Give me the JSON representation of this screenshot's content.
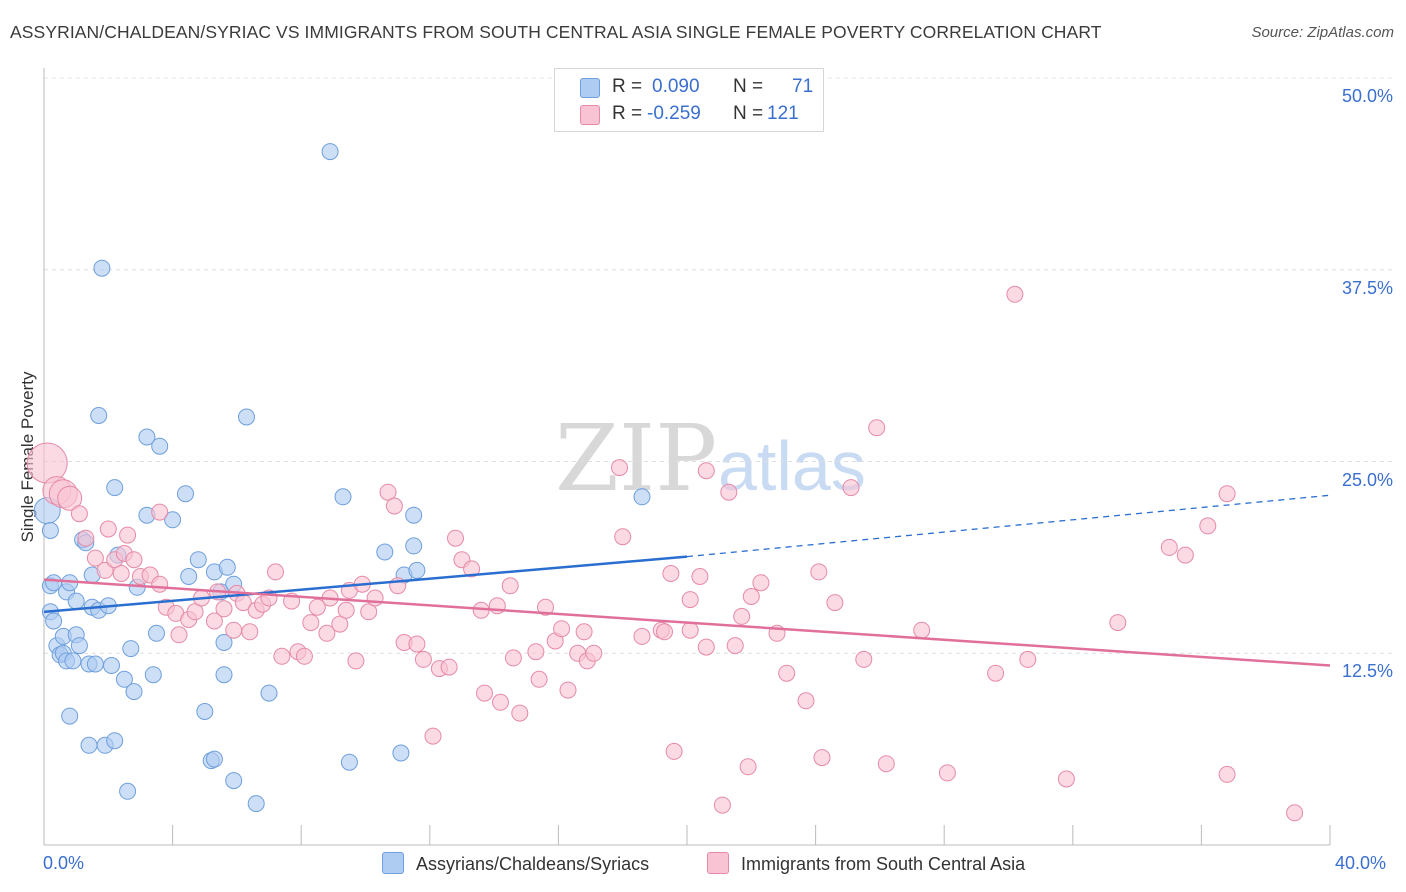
{
  "title": "ASSYRIAN/CHALDEAN/SYRIAC VS IMMIGRANTS FROM SOUTH CENTRAL ASIA SINGLE FEMALE POVERTY CORRELATION CHART",
  "source": "Source: ZipAtlas.com",
  "watermark": {
    "zip": "ZIP",
    "atlas": "atlas"
  },
  "legend": {
    "rows": [
      {
        "r_label": "R =",
        "r_value": "0.090",
        "n_label": "N =",
        "n_value": "71",
        "color": "#aecbf2",
        "border": "#6f9fdc"
      },
      {
        "r_label": "R =",
        "r_value": "-0.259",
        "n_label": "N =",
        "n_value": "121",
        "color": "#f8c4d3",
        "border": "#e68aa8"
      }
    ]
  },
  "bottom_legend": [
    {
      "label": "Assyrians/Chaldeans/Syriacs",
      "color": "#aecbf2",
      "border": "#6f9fdc"
    },
    {
      "label": "Immigrants from South Central Asia",
      "color": "#f8c4d3",
      "border": "#e68aa8"
    }
  ],
  "chart_data": {
    "type": "scatter",
    "title": "ASSYRIAN/CHALDEAN/SYRIAC VS IMMIGRANTS FROM SOUTH CENTRAL ASIA SINGLE FEMALE POVERTY CORRELATION CHART",
    "xlabel": "",
    "ylabel": "Single Female Poverty",
    "xlim": [
      0,
      40
    ],
    "ylim": [
      0,
      50
    ],
    "x_tick_labels": [
      "0.0%",
      "40.0%"
    ],
    "y_ticks": [
      12.5,
      25.0,
      37.5,
      50.0
    ],
    "y_tick_labels": [
      "12.5%",
      "25.0%",
      "37.5%",
      "50.0%"
    ],
    "grid": true,
    "series": [
      {
        "name": "Assyrians/Chaldeans/Syriacs",
        "color": "#aecbf2",
        "edge": "#6f9fdc",
        "trend": {
          "x": [
            0,
            20
          ],
          "y": [
            15.2,
            18.8
          ],
          "dashed_to": [
            40,
            22.8
          ],
          "color": "#2a6fd0"
        },
        "points": [
          [
            0.1,
            21.8
          ],
          [
            0.2,
            20.5
          ],
          [
            0.2,
            16.9
          ],
          [
            0.2,
            15.2
          ],
          [
            0.3,
            17.1
          ],
          [
            0.3,
            14.6
          ],
          [
            0.4,
            13.0
          ],
          [
            0.5,
            12.4
          ],
          [
            0.6,
            12.5
          ],
          [
            0.6,
            13.6
          ],
          [
            0.7,
            12.0
          ],
          [
            0.7,
            16.5
          ],
          [
            0.8,
            17.1
          ],
          [
            0.8,
            8.4
          ],
          [
            0.9,
            12.0
          ],
          [
            1.0,
            15.9
          ],
          [
            1.0,
            13.7
          ],
          [
            1.1,
            13.0
          ],
          [
            1.2,
            19.9
          ],
          [
            1.3,
            19.7
          ],
          [
            1.4,
            6.5
          ],
          [
            1.4,
            11.8
          ],
          [
            1.5,
            17.6
          ],
          [
            1.5,
            15.5
          ],
          [
            1.6,
            11.8
          ],
          [
            1.7,
            15.3
          ],
          [
            1.7,
            28.0
          ],
          [
            1.8,
            37.6
          ],
          [
            1.9,
            6.5
          ],
          [
            2.0,
            15.6
          ],
          [
            2.1,
            11.7
          ],
          [
            2.2,
            6.8
          ],
          [
            2.2,
            23.3
          ],
          [
            2.3,
            18.9
          ],
          [
            2.5,
            10.8
          ],
          [
            2.6,
            3.5
          ],
          [
            2.7,
            12.8
          ],
          [
            2.8,
            10.0
          ],
          [
            2.9,
            16.8
          ],
          [
            3.2,
            21.5
          ],
          [
            3.2,
            26.6
          ],
          [
            3.4,
            11.1
          ],
          [
            3.5,
            13.8
          ],
          [
            3.6,
            26.0
          ],
          [
            4.0,
            21.2
          ],
          [
            4.4,
            22.9
          ],
          [
            4.5,
            17.5
          ],
          [
            4.8,
            18.6
          ],
          [
            5.0,
            8.7
          ],
          [
            5.2,
            5.5
          ],
          [
            5.3,
            17.8
          ],
          [
            5.3,
            5.6
          ],
          [
            5.5,
            16.5
          ],
          [
            5.6,
            13.2
          ],
          [
            5.6,
            11.1
          ],
          [
            5.7,
            18.1
          ],
          [
            5.9,
            17.0
          ],
          [
            5.9,
            4.2
          ],
          [
            6.3,
            27.9
          ],
          [
            6.6,
            2.7
          ],
          [
            7.0,
            9.9
          ],
          [
            8.9,
            45.2
          ],
          [
            9.3,
            22.7
          ],
          [
            9.5,
            5.4
          ],
          [
            10.6,
            19.1
          ],
          [
            11.1,
            6.0
          ],
          [
            11.5,
            19.5
          ],
          [
            11.5,
            21.5
          ],
          [
            11.2,
            17.6
          ],
          [
            18.6,
            22.7
          ],
          [
            11.6,
            17.9
          ]
        ],
        "sizes_note": "one larger point at x=0.1"
      },
      {
        "name": "Immigrants from South Central Asia",
        "color": "#f8c4d3",
        "edge": "#e68aa8",
        "trend": {
          "x": [
            0,
            40
          ],
          "y": [
            17.3,
            11.7
          ],
          "color": "#e0709a"
        },
        "points": [
          [
            0.1,
            24.9
          ],
          [
            0.4,
            23.1
          ],
          [
            0.6,
            22.9
          ],
          [
            0.8,
            22.6
          ],
          [
            1.1,
            21.6
          ],
          [
            1.3,
            20.0
          ],
          [
            1.6,
            18.7
          ],
          [
            1.9,
            17.9
          ],
          [
            2.0,
            20.6
          ],
          [
            2.2,
            18.6
          ],
          [
            2.4,
            17.7
          ],
          [
            2.5,
            19.0
          ],
          [
            2.6,
            20.2
          ],
          [
            2.8,
            18.6
          ],
          [
            3.0,
            17.5
          ],
          [
            3.3,
            17.6
          ],
          [
            3.6,
            21.7
          ],
          [
            3.6,
            17.0
          ],
          [
            3.8,
            15.5
          ],
          [
            4.1,
            15.1
          ],
          [
            4.2,
            13.7
          ],
          [
            4.5,
            14.7
          ],
          [
            4.7,
            15.2
          ],
          [
            4.9,
            16.1
          ],
          [
            5.3,
            14.6
          ],
          [
            5.4,
            16.5
          ],
          [
            5.6,
            15.4
          ],
          [
            5.9,
            14.0
          ],
          [
            6.0,
            16.4
          ],
          [
            6.2,
            15.8
          ],
          [
            6.4,
            13.9
          ],
          [
            6.6,
            15.3
          ],
          [
            6.8,
            15.7
          ],
          [
            7.0,
            16.1
          ],
          [
            7.2,
            17.8
          ],
          [
            7.4,
            12.3
          ],
          [
            7.7,
            15.9
          ],
          [
            7.9,
            12.6
          ],
          [
            8.1,
            12.3
          ],
          [
            8.3,
            14.5
          ],
          [
            8.5,
            15.5
          ],
          [
            8.8,
            13.8
          ],
          [
            8.9,
            16.1
          ],
          [
            9.2,
            14.4
          ],
          [
            9.4,
            15.3
          ],
          [
            9.5,
            16.6
          ],
          [
            9.7,
            12.0
          ],
          [
            9.9,
            17.0
          ],
          [
            10.1,
            15.2
          ],
          [
            10.3,
            16.1
          ],
          [
            10.7,
            23.0
          ],
          [
            10.9,
            22.1
          ],
          [
            11.0,
            16.9
          ],
          [
            11.2,
            13.2
          ],
          [
            11.6,
            13.1
          ],
          [
            11.8,
            12.1
          ],
          [
            12.1,
            7.1
          ],
          [
            12.3,
            11.5
          ],
          [
            12.6,
            11.6
          ],
          [
            12.8,
            20.0
          ],
          [
            13.0,
            18.6
          ],
          [
            13.3,
            18.0
          ],
          [
            13.6,
            15.3
          ],
          [
            13.7,
            9.9
          ],
          [
            14.1,
            15.6
          ],
          [
            14.2,
            9.3
          ],
          [
            14.5,
            16.9
          ],
          [
            14.6,
            12.2
          ],
          [
            14.8,
            8.6
          ],
          [
            15.3,
            12.6
          ],
          [
            15.4,
            10.8
          ],
          [
            15.6,
            15.5
          ],
          [
            15.9,
            13.3
          ],
          [
            16.1,
            14.1
          ],
          [
            16.3,
            10.1
          ],
          [
            16.6,
            12.5
          ],
          [
            16.8,
            13.9
          ],
          [
            16.9,
            12.0
          ],
          [
            17.1,
            12.5
          ],
          [
            17.9,
            24.6
          ],
          [
            18.0,
            20.1
          ],
          [
            18.6,
            13.6
          ],
          [
            19.2,
            14.0
          ],
          [
            19.3,
            13.9
          ],
          [
            19.5,
            17.7
          ],
          [
            19.6,
            6.1
          ],
          [
            20.1,
            14.0
          ],
          [
            20.1,
            16.0
          ],
          [
            20.4,
            17.5
          ],
          [
            20.6,
            12.9
          ],
          [
            20.6,
            24.4
          ],
          [
            21.1,
            2.6
          ],
          [
            21.3,
            23.0
          ],
          [
            21.5,
            13.0
          ],
          [
            21.7,
            14.9
          ],
          [
            21.9,
            5.1
          ],
          [
            22.0,
            16.2
          ],
          [
            22.3,
            17.1
          ],
          [
            22.8,
            13.8
          ],
          [
            23.1,
            11.2
          ],
          [
            23.7,
            9.4
          ],
          [
            24.1,
            17.8
          ],
          [
            24.2,
            5.7
          ],
          [
            24.6,
            15.8
          ],
          [
            25.1,
            23.3
          ],
          [
            25.5,
            12.1
          ],
          [
            25.9,
            27.2
          ],
          [
            26.2,
            5.3
          ],
          [
            27.3,
            14.0
          ],
          [
            28.1,
            4.7
          ],
          [
            29.6,
            11.2
          ],
          [
            30.2,
            35.9
          ],
          [
            30.6,
            12.1
          ],
          [
            31.8,
            4.3
          ],
          [
            33.4,
            14.5
          ],
          [
            35.0,
            19.4
          ],
          [
            35.5,
            18.9
          ],
          [
            36.2,
            20.8
          ],
          [
            36.8,
            22.9
          ],
          [
            36.8,
            4.6
          ],
          [
            38.9,
            2.1
          ]
        ]
      }
    ]
  }
}
